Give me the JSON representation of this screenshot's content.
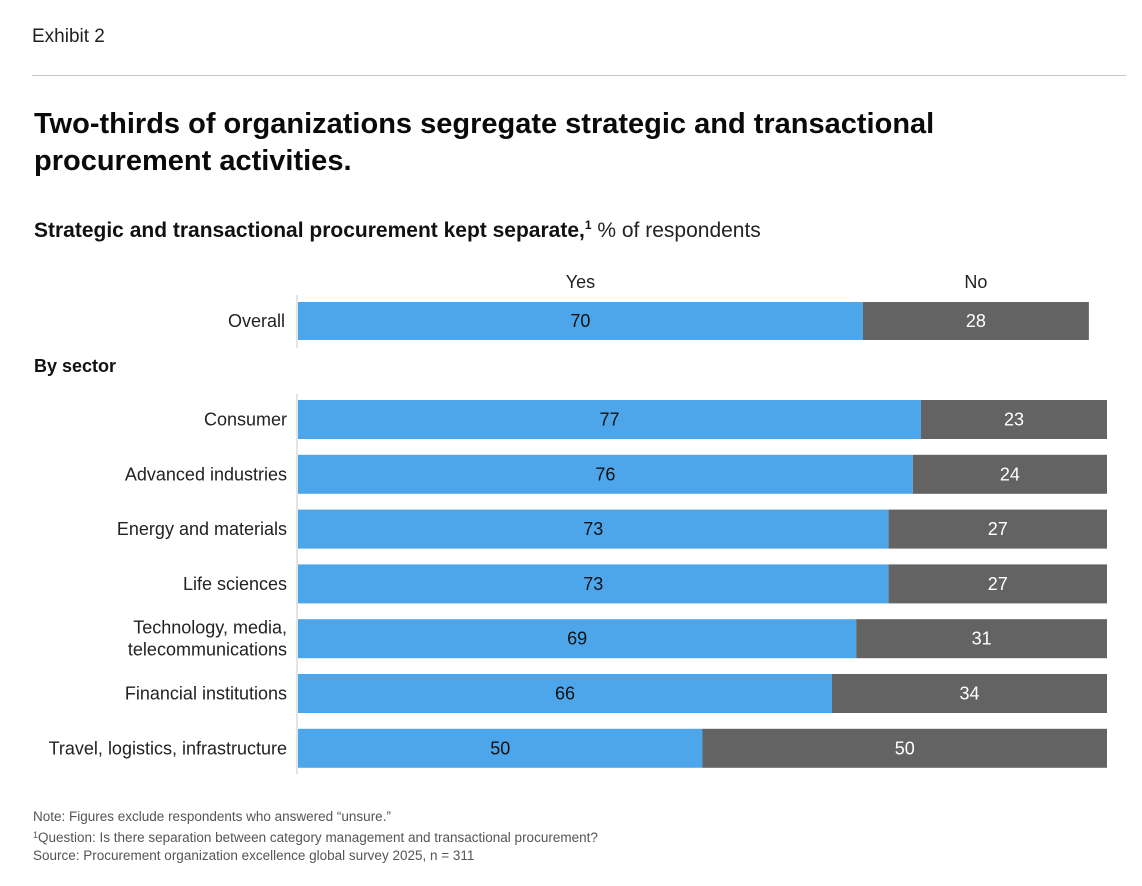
{
  "header": {
    "exhibit": "Exhibit 2"
  },
  "title": "Two-thirds of organizations segregate strategic and transactional procurement activities.",
  "subtitle": {
    "bold": "Strategic and transactional procurement kept separate,",
    "sup": "1",
    "unit": "% of respondents"
  },
  "section_label": "By sector",
  "colors": {
    "yes": "#4da6ea",
    "no": "#636363",
    "axis": "#c8c8c8"
  },
  "chart_data": {
    "type": "bar",
    "orientation": "horizontal",
    "stacked": true,
    "title": "Strategic and transactional procurement kept separate",
    "unit": "% of respondents",
    "legend": [
      "Yes",
      "No"
    ],
    "overall": {
      "category": "Overall",
      "yes": 70,
      "no": 28
    },
    "categories": [
      "Consumer",
      "Advanced industries",
      "Energy and materials",
      "Life sciences",
      "Technology, media, telecommunications",
      "Financial institutions",
      "Travel, logistics, infrastructure"
    ],
    "category_lines": [
      [
        "Consumer"
      ],
      [
        "Advanced industries"
      ],
      [
        "Energy and materials"
      ],
      [
        "Life sciences"
      ],
      [
        "Technology, media,",
        "telecommunications"
      ],
      [
        "Financial institutions"
      ],
      [
        "Travel, logistics, infrastructure"
      ]
    ],
    "series": [
      {
        "name": "Yes",
        "values": [
          77,
          76,
          73,
          73,
          69,
          66,
          50
        ]
      },
      {
        "name": "No",
        "values": [
          23,
          24,
          27,
          27,
          31,
          34,
          50
        ]
      }
    ]
  },
  "footnotes": {
    "note": "Note: Figures exclude respondents who answered “unsure.”",
    "question_sup": "1",
    "question": "Question: Is there separation between category management and transactional procurement?",
    "source": "Source: Procurement organization excellence global survey 2025, n = 311"
  }
}
